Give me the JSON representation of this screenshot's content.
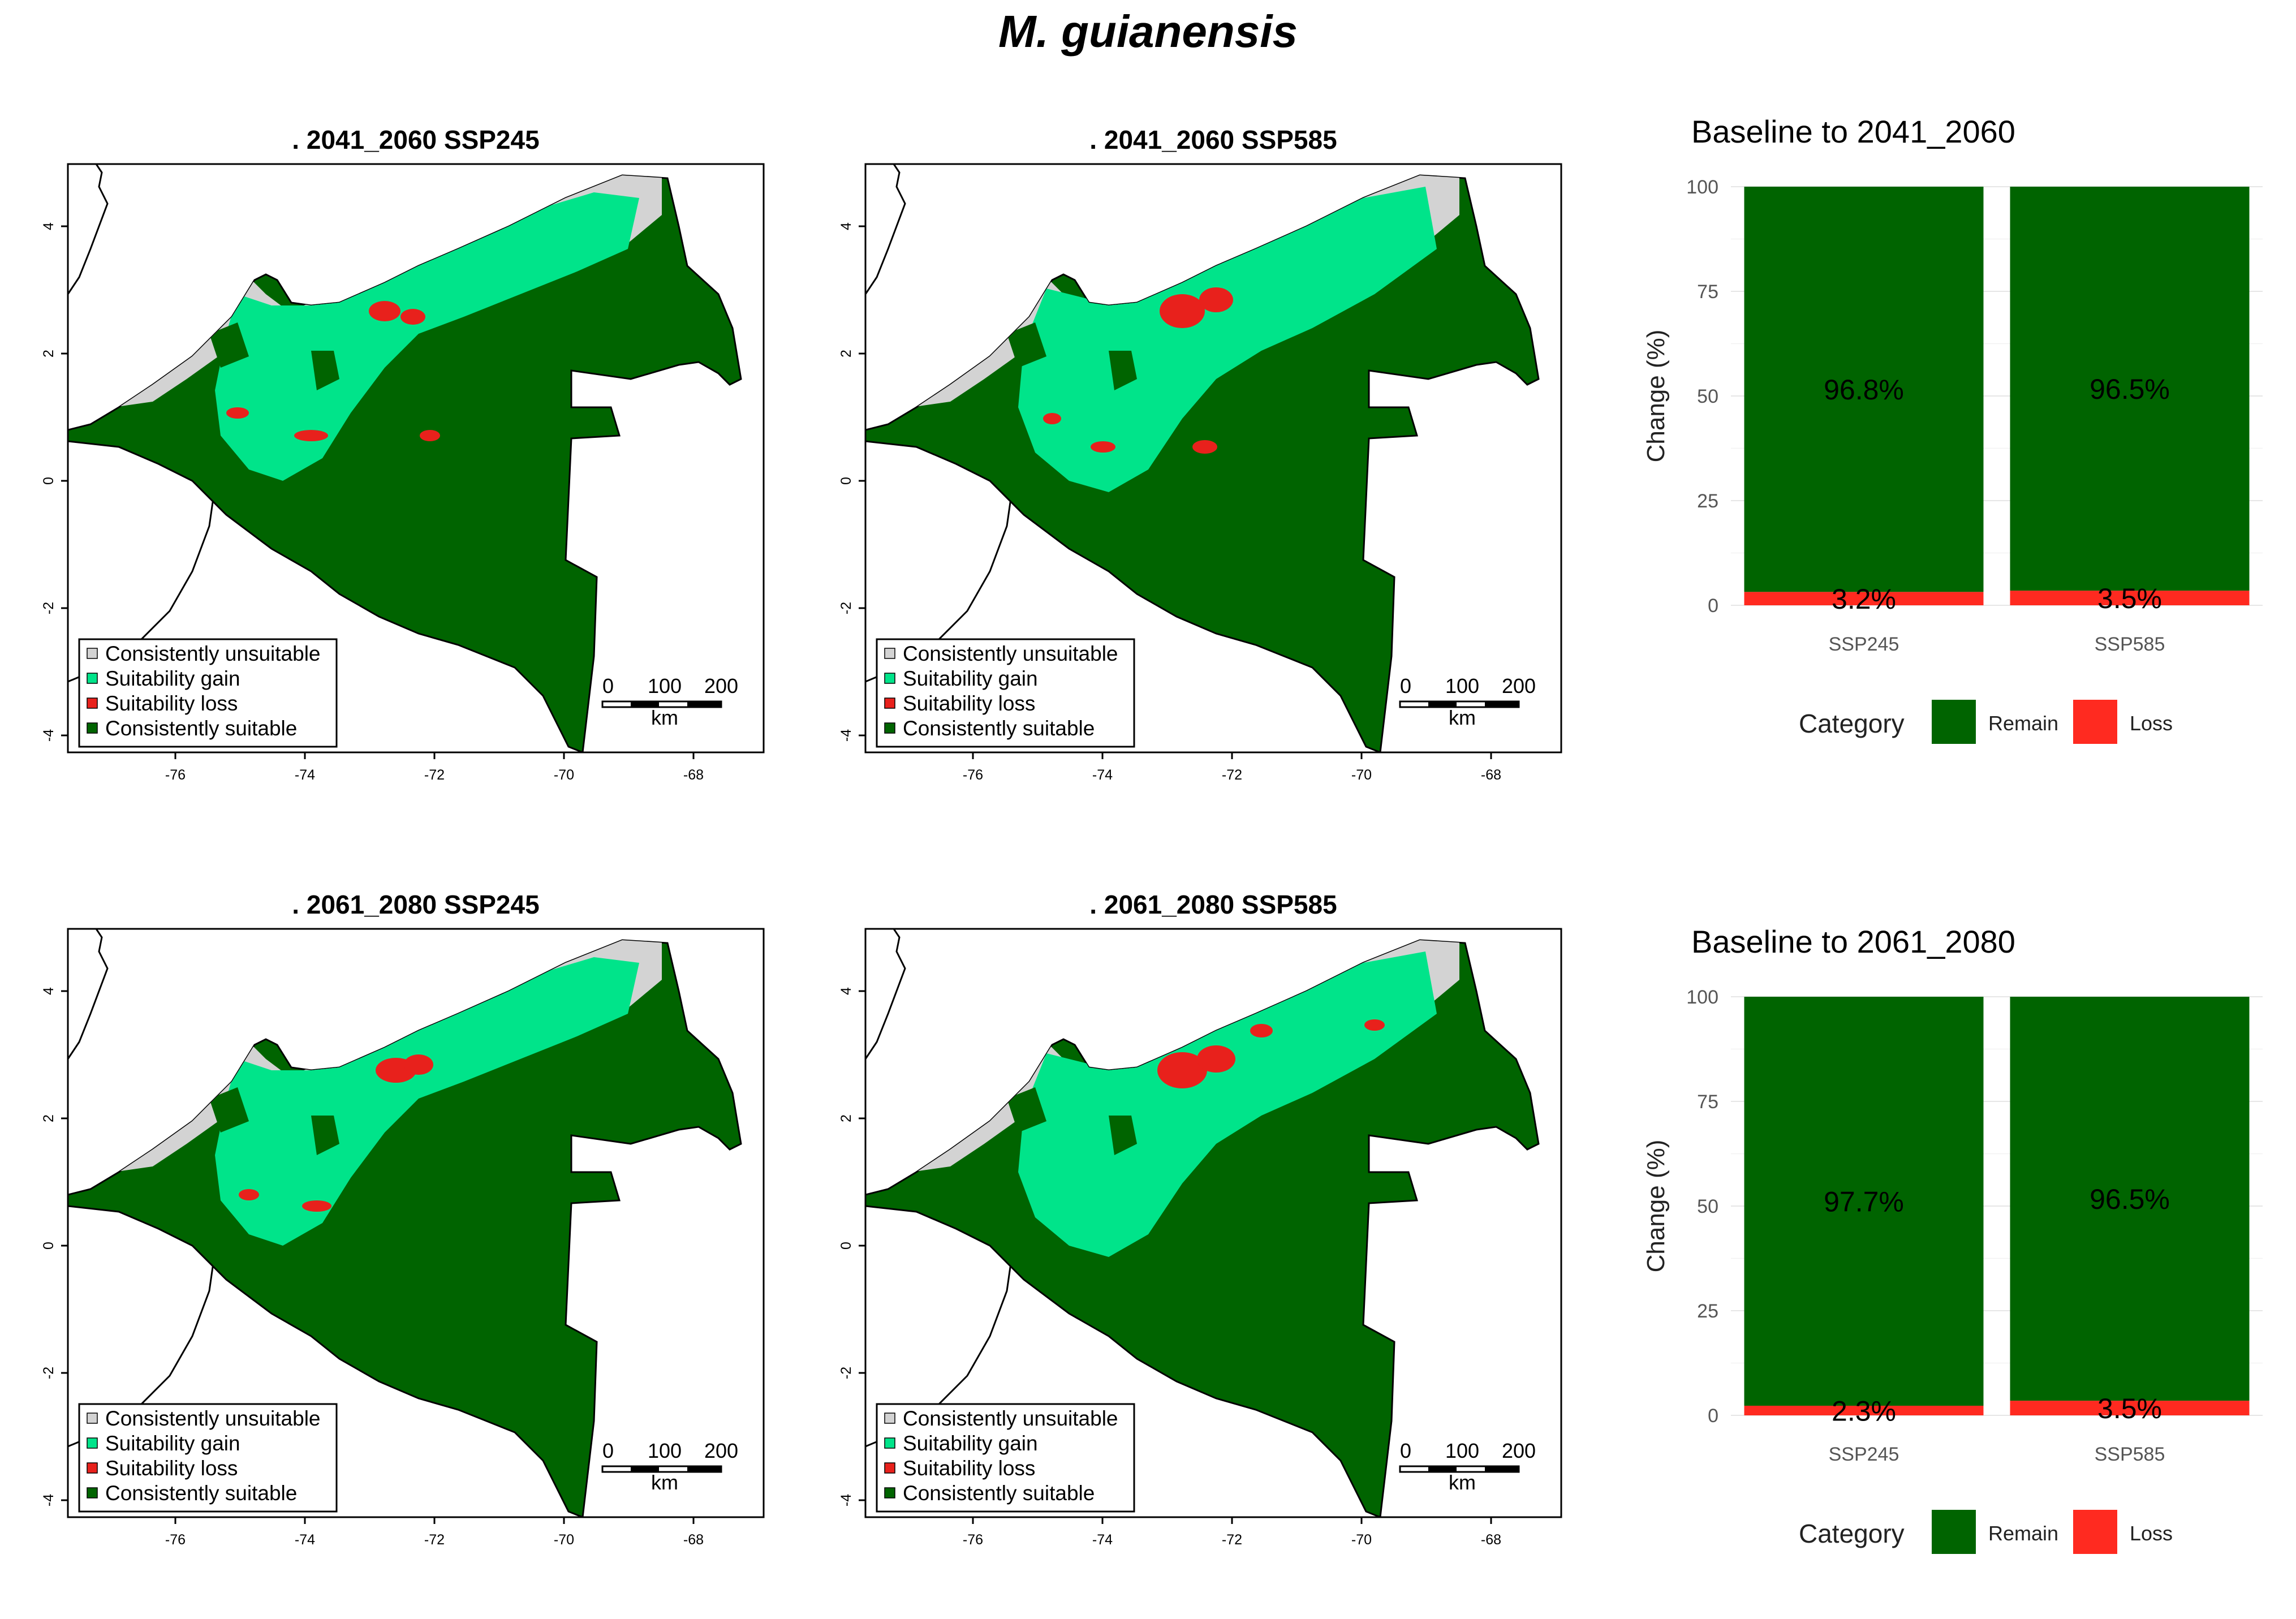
{
  "figure_title": "M. guianensis",
  "colors": {
    "unsuitable": "#D3D3D3",
    "gain": "#00E48A",
    "loss": "#E8211C",
    "suitable": "#006400",
    "remain": "#006400",
    "bar_loss": "#FF2A20"
  },
  "map_common": {
    "legend": [
      "Consistently unsuitable",
      "Suitability gain",
      "Suitability loss",
      "Consistently suitable"
    ],
    "x_ticks": [
      "-76",
      "-74",
      "-72",
      "-70",
      "-68"
    ],
    "y_ticks": [
      "4",
      "2",
      "0",
      "-2",
      "-4"
    ],
    "scale_labels": [
      "0",
      "100",
      "200"
    ],
    "scale_unit": "km"
  },
  "maps": [
    {
      "title": ". 2041_2060  SSP245"
    },
    {
      "title": ". 2041_2060  SSP585"
    },
    {
      "title": ". 2061_2080  SSP245"
    },
    {
      "title": ". 2061_2080  SSP585"
    }
  ],
  "bar_common": {
    "ylabel": "Change (%)",
    "y_ticks": [
      "100",
      "75",
      "50",
      "25",
      "0"
    ],
    "legend_title": "Category",
    "legend_items": [
      "Remain",
      "Loss"
    ]
  },
  "chart_data": [
    {
      "type": "bar",
      "title": "Baseline to  2041_2060",
      "categories": [
        "SSP245",
        "SSP585"
      ],
      "series": [
        {
          "name": "Remain",
          "values": [
            96.8,
            96.5
          ]
        },
        {
          "name": "Loss",
          "values": [
            3.2,
            3.5
          ]
        }
      ],
      "value_labels": {
        "Remain": [
          "96.8%",
          "96.5%"
        ],
        "Loss": [
          "3.2%",
          "3.5%"
        ]
      },
      "xlabel": "",
      "ylabel": "Change (%)",
      "ylim": [
        0,
        100
      ],
      "stacked": true,
      "grid": true,
      "legend": "bottom"
    },
    {
      "type": "bar",
      "title": "Baseline to  2061_2080",
      "categories": [
        "SSP245",
        "SSP585"
      ],
      "series": [
        {
          "name": "Remain",
          "values": [
            97.7,
            96.5
          ]
        },
        {
          "name": "Loss",
          "values": [
            2.3,
            3.5
          ]
        }
      ],
      "value_labels": {
        "Remain": [
          "97.7%",
          "96.5%"
        ],
        "Loss": [
          "2.3%",
          "3.5%"
        ]
      },
      "xlabel": "",
      "ylabel": "Change (%)",
      "ylim": [
        0,
        100
      ],
      "stacked": true,
      "grid": true,
      "legend": "bottom"
    }
  ]
}
